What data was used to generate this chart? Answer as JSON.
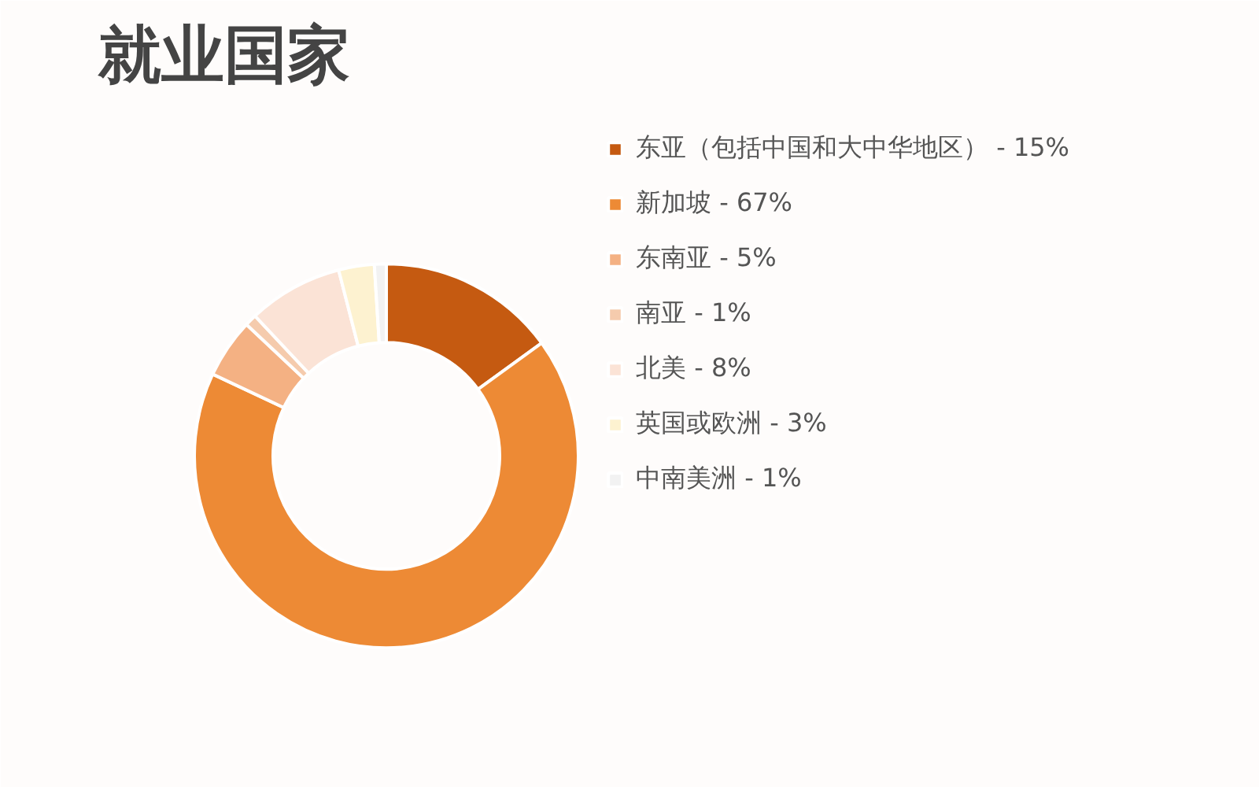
{
  "chart_data": {
    "type": "donut",
    "title": "就业国家",
    "categories": [
      "东亚（包括中国和大中华地区） - 15%",
      "新加坡 - 67%",
      "东南亚 - 5%",
      "南亚 - 1%",
      "北美 - 8%",
      "英国或欧洲 - 3%",
      "中南美洲 - 1%"
    ],
    "values": [
      15,
      67,
      5,
      1,
      8,
      3,
      1
    ],
    "colors": [
      "#c55a11",
      "#ed8a35",
      "#f4b183",
      "#f5cbad",
      "#fbe3d6",
      "#fdf2d0",
      "#f2f2f2"
    ],
    "legend": "right"
  }
}
